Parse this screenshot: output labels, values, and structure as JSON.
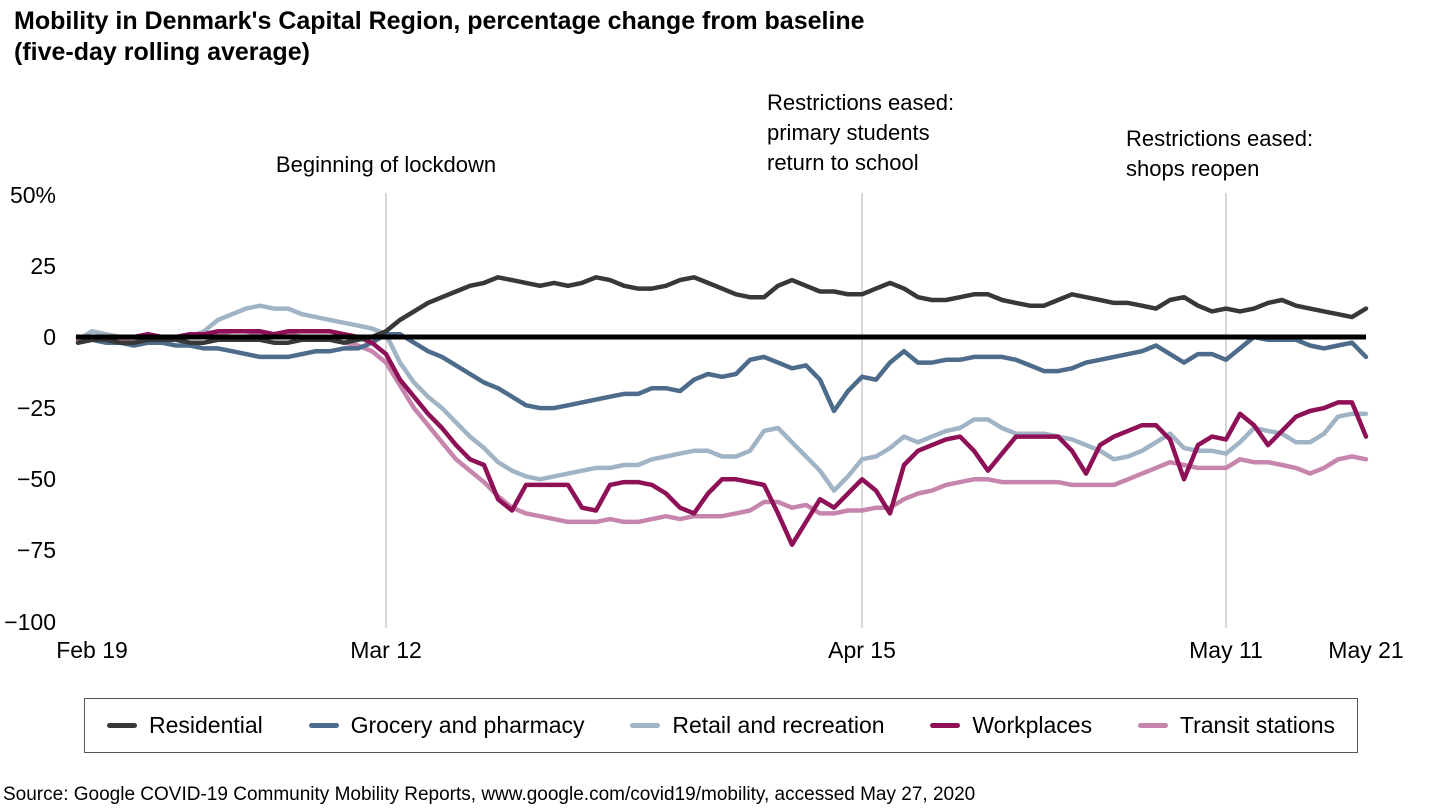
{
  "title": {
    "line1": "Mobility in Denmark's Capital Region, percentage change from baseline",
    "line2": "(five-day rolling average)"
  },
  "source": "Source: Google COVID-19 Community Mobility Reports, www.google.com/covid19/mobility, accessed May 27, 2020",
  "chart_data": {
    "type": "line",
    "x_unit": "days since Feb 19, 2020 (daily, five-day rolling average)",
    "ylim": [
      -100,
      50
    ],
    "grid": "vertical-event-lines-only",
    "legend_position": "bottom-boxed",
    "y_ticks": [
      {
        "label": "50%",
        "value": 50
      },
      {
        "label": "25",
        "value": 25
      },
      {
        "label": "0",
        "value": 0
      },
      {
        "label": "−25",
        "value": -25
      },
      {
        "label": "−50",
        "value": -50
      },
      {
        "label": "−75",
        "value": -75
      },
      {
        "label": "−100",
        "value": -100
      }
    ],
    "x_ticks": [
      {
        "label": "Feb 19",
        "day": 0,
        "gridline": false
      },
      {
        "label": "Mar 12",
        "day": 22,
        "gridline": true
      },
      {
        "label": "Apr 15",
        "day": 56,
        "gridline": true
      },
      {
        "label": "May 11",
        "day": 82,
        "gridline": true
      },
      {
        "label": "May 21",
        "day": 92,
        "gridline": false
      }
    ],
    "annotations": [
      {
        "lines": [
          "Beginning of lockdown"
        ],
        "day": 22
      },
      {
        "lines": [
          "Restrictions eased:",
          "primary students",
          "return to school"
        ],
        "day": 56
      },
      {
        "lines": [
          "Restrictions eased:",
          "shops reopen"
        ],
        "day": 82
      }
    ],
    "zero_line_color": "#000000",
    "gridline_color": "#cccccc",
    "series": [
      {
        "name": "Residential",
        "color": "#383838",
        "values": [
          -2,
          -1,
          -1,
          -2,
          -2,
          -1,
          -1,
          -1,
          -2,
          -2,
          -1,
          -1,
          -1,
          -1,
          -2,
          -2,
          -1,
          -1,
          -1,
          -2,
          -1,
          0,
          2,
          6,
          9,
          12,
          14,
          16,
          18,
          19,
          21,
          20,
          19,
          18,
          19,
          18,
          19,
          21,
          20,
          18,
          17,
          17,
          18,
          20,
          21,
          19,
          17,
          15,
          14,
          14,
          18,
          20,
          18,
          16,
          16,
          15,
          15,
          17,
          19,
          17,
          14,
          13,
          13,
          14,
          15,
          15,
          13,
          12,
          11,
          11,
          13,
          15,
          14,
          13,
          12,
          12,
          11,
          10,
          13,
          14,
          11,
          9,
          10,
          9,
          10,
          12,
          13,
          11,
          10,
          9,
          8,
          7,
          10
        ]
      },
      {
        "name": "Grocery and pharmacy",
        "color": "#4d6b8b",
        "values": [
          -2,
          -1,
          -2,
          -2,
          -3,
          -2,
          -2,
          -3,
          -3,
          -4,
          -4,
          -5,
          -6,
          -7,
          -7,
          -7,
          -6,
          -5,
          -5,
          -4,
          -4,
          -2,
          1,
          1,
          -2,
          -5,
          -7,
          -10,
          -13,
          -16,
          -18,
          -21,
          -24,
          -25,
          -25,
          -24,
          -23,
          -22,
          -21,
          -20,
          -20,
          -18,
          -18,
          -19,
          -15,
          -13,
          -14,
          -13,
          -8,
          -7,
          -9,
          -11,
          -10,
          -15,
          -26,
          -19,
          -14,
          -15,
          -9,
          -5,
          -9,
          -9,
          -8,
          -8,
          -7,
          -7,
          -7,
          -8,
          -10,
          -12,
          -12,
          -11,
          -9,
          -8,
          -7,
          -6,
          -5,
          -3,
          -6,
          -9,
          -6,
          -6,
          -8,
          -4,
          0,
          -1,
          -1,
          -1,
          -3,
          -4,
          -3,
          -2,
          -7
        ]
      },
      {
        "name": "Retail and recreation",
        "color": "#a0b4c6",
        "values": [
          -1,
          2,
          1,
          0,
          -1,
          -1,
          0,
          -1,
          0,
          2,
          6,
          8,
          10,
          11,
          10,
          10,
          8,
          7,
          6,
          5,
          4,
          3,
          1,
          -9,
          -16,
          -21,
          -25,
          -30,
          -35,
          -39,
          -44,
          -47,
          -49,
          -50,
          -49,
          -48,
          -47,
          -46,
          -46,
          -45,
          -45,
          -43,
          -42,
          -41,
          -40,
          -40,
          -42,
          -42,
          -40,
          -33,
          -32,
          -37,
          -42,
          -47,
          -54,
          -49,
          -43,
          -42,
          -39,
          -35,
          -37,
          -35,
          -33,
          -32,
          -29,
          -29,
          -32,
          -34,
          -34,
          -34,
          -35,
          -36,
          -38,
          -40,
          -43,
          -42,
          -40,
          -37,
          -34,
          -39,
          -40,
          -40,
          -41,
          -37,
          -32,
          -33,
          -34,
          -37,
          -37,
          -34,
          -28,
          -27,
          -27
        ]
      },
      {
        "name": "Workplaces",
        "color": "#8e1157",
        "values": [
          0,
          0,
          -1,
          0,
          0,
          1,
          0,
          0,
          1,
          1,
          2,
          2,
          2,
          2,
          1,
          2,
          2,
          2,
          2,
          1,
          0,
          -2,
          -6,
          -15,
          -21,
          -27,
          -32,
          -38,
          -43,
          -45,
          -57,
          -61,
          -52,
          -52,
          -52,
          -52,
          -60,
          -61,
          -52,
          -51,
          -51,
          -52,
          -55,
          -60,
          -62,
          -55,
          -50,
          -50,
          -51,
          -52,
          -62,
          -73,
          -65,
          -57,
          -60,
          -55,
          -50,
          -54,
          -62,
          -45,
          -40,
          -38,
          -36,
          -35,
          -40,
          -47,
          -41,
          -35,
          -35,
          -35,
          -35,
          -40,
          -48,
          -38,
          -35,
          -33,
          -31,
          -31,
          -36,
          -50,
          -38,
          -35,
          -36,
          -27,
          -31,
          -38,
          -33,
          -28,
          -26,
          -25,
          -23,
          -23,
          -35
        ]
      },
      {
        "name": "Transit stations",
        "color": "#c685ad",
        "values": [
          -1,
          0,
          0,
          -1,
          -1,
          0,
          0,
          0,
          1,
          1,
          1,
          2,
          2,
          1,
          1,
          1,
          0,
          0,
          -1,
          -2,
          -3,
          -5,
          -9,
          -17,
          -25,
          -31,
          -37,
          -43,
          -47,
          -51,
          -56,
          -60,
          -62,
          -63,
          -64,
          -65,
          -65,
          -65,
          -64,
          -65,
          -65,
          -64,
          -63,
          -64,
          -63,
          -63,
          -63,
          -62,
          -61,
          -58,
          -58,
          -60,
          -59,
          -62,
          -62,
          -61,
          -61,
          -60,
          -60,
          -57,
          -55,
          -54,
          -52,
          -51,
          -50,
          -50,
          -51,
          -51,
          -51,
          -51,
          -51,
          -52,
          -52,
          -52,
          -52,
          -50,
          -48,
          -46,
          -44,
          -45,
          -46,
          -46,
          -46,
          -43,
          -44,
          -44,
          -45,
          -46,
          -48,
          -46,
          -43,
          -42,
          -43
        ]
      }
    ]
  }
}
